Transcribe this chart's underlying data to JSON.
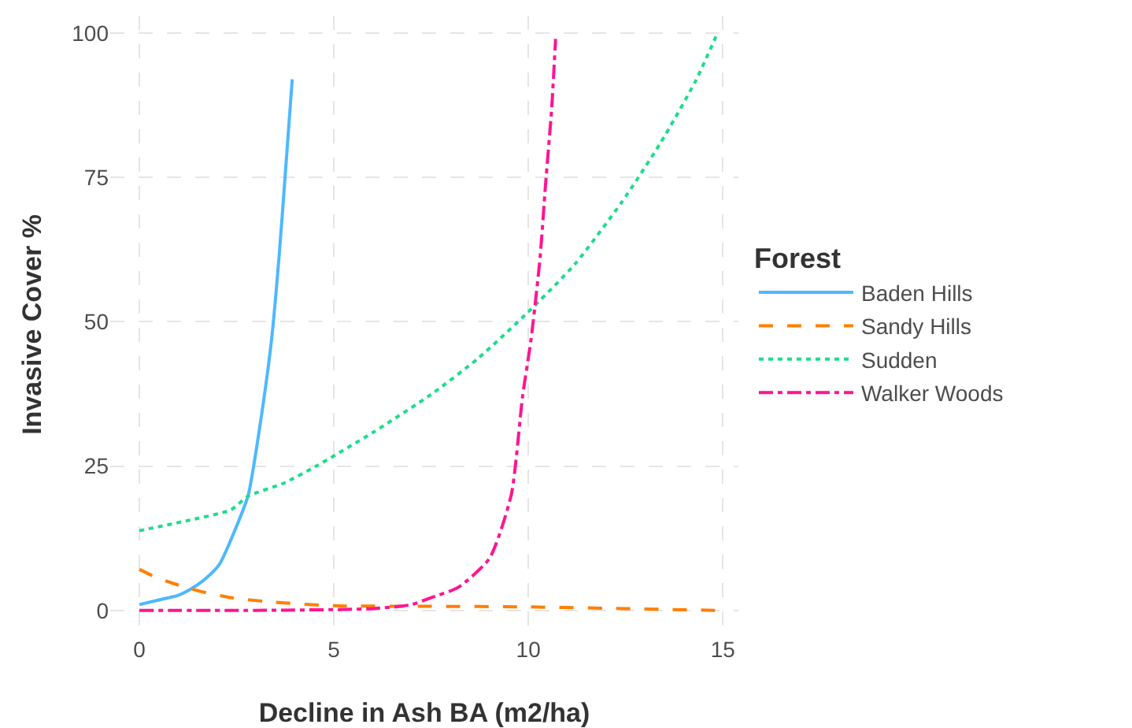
{
  "chart_data": {
    "type": "line",
    "xlabel": "Decline in Ash BA (m2/ha)",
    "ylabel": "Invasive Cover %",
    "legend_title": "Forest",
    "legend": "right",
    "grid": true,
    "marker": "none",
    "xlim": [
      -0.75,
      15.4
    ],
    "xticks": [
      0,
      5,
      10,
      15
    ],
    "ylim": [
      -4,
      103
    ],
    "yticks": [
      0,
      25,
      50,
      75,
      100
    ],
    "series": [
      {
        "name": "Baden Hills",
        "color": "#4db8ff",
        "line_style": "solid",
        "x": [
          0,
          0.5,
          1,
          1.3,
          1.7,
          2.06,
          2.5,
          2.8,
          3.1,
          3.4,
          3.6,
          3.75,
          3.93
        ],
        "values": [
          1,
          1.8,
          2.6,
          3.6,
          5.5,
          8,
          14.6,
          20,
          32,
          47,
          62,
          75.5,
          92
        ]
      },
      {
        "name": "Sandy Hills",
        "color": "#ff7f00",
        "line_style": "dashed",
        "x": [
          0,
          0.4,
          0.9,
          1.5,
          2.35,
          3.5,
          5,
          7.5,
          10,
          12.5,
          14.8
        ],
        "values": [
          7.1,
          5.8,
          4.6,
          3.4,
          2.2,
          1.4,
          0.8,
          0.7,
          0.6,
          0.3,
          0
        ]
      },
      {
        "name": "Sudden",
        "color": "#1edc8c",
        "line_style": "dotted",
        "x": [
          0,
          1.2,
          2.35,
          2.8,
          3.7,
          4.55,
          6,
          7.5,
          8.7,
          10,
          11.2,
          12.4,
          13.4,
          14.3,
          14.85
        ],
        "values": [
          13.8,
          15.5,
          17.4,
          19.8,
          22,
          25,
          30.8,
          37.4,
          43.6,
          51.7,
          60,
          70.7,
          81,
          91.7,
          99.8
        ]
      },
      {
        "name": "Walker Woods",
        "color": "#ff1493",
        "line_style": "dotted_dash",
        "x": [
          0,
          3,
          6,
          7,
          7.5,
          8.2,
          9,
          9.56,
          9.85,
          10.07,
          10.3,
          10.44,
          10.6,
          10.7
        ],
        "values": [
          0,
          0,
          0.3,
          1,
          2.2,
          4,
          9,
          20,
          37,
          47,
          61,
          73.6,
          87,
          99
        ]
      }
    ]
  }
}
